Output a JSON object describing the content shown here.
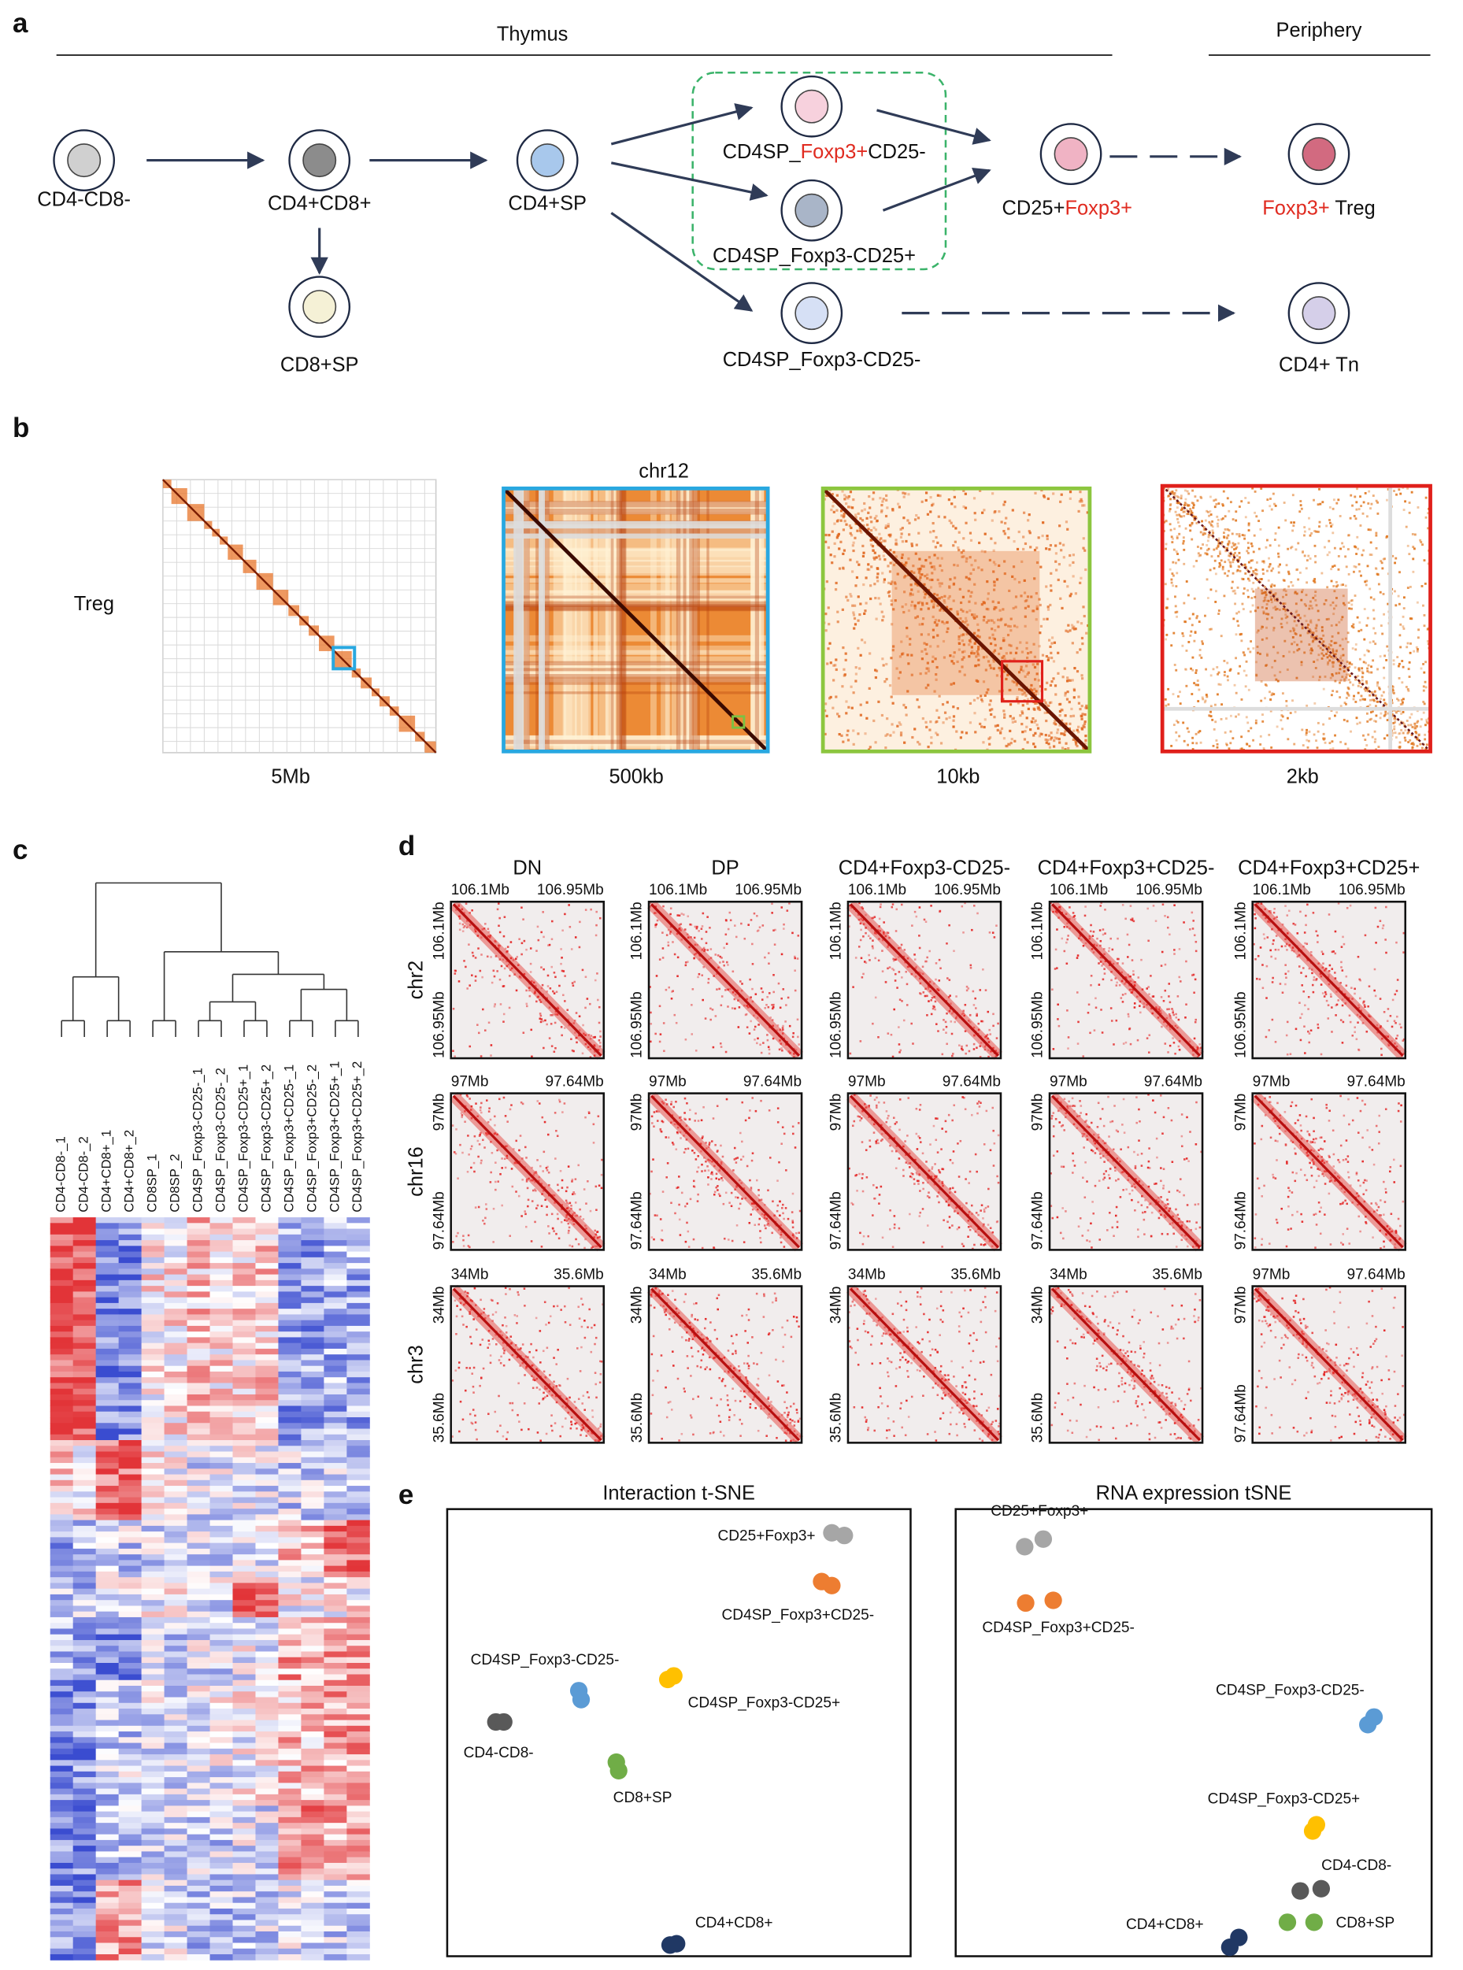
{
  "panels": {
    "a": {
      "letter": "a",
      "regions": [
        "Thymus",
        "Periphery"
      ],
      "cells": [
        {
          "fill": "#d0d0d0",
          "label": [
            {
              "text": "CD4-CD8-"
            }
          ]
        },
        {
          "fill": "#8c8c8c",
          "label": [
            {
              "text": "CD4+CD8+"
            }
          ]
        },
        {
          "fill": "#f5f1d6",
          "label": [
            {
              "text": "CD8+SP"
            }
          ]
        },
        {
          "fill": "#a8c8ec",
          "label": [
            {
              "text": "CD4+SP"
            }
          ]
        },
        {
          "fill": "#f7d1dd",
          "label": [
            {
              "text": "CD4SP_"
            },
            {
              "text": "Foxp3+",
              "color": "#e02b20"
            },
            {
              "text": "CD25-"
            }
          ]
        },
        {
          "fill": "#a9b5c8",
          "label": [
            {
              "text": "CD4SP_Foxp3-CD25+"
            }
          ]
        },
        {
          "fill": "#d6e0f5",
          "label": [
            {
              "text": "CD4SP_Foxp3-CD25-"
            }
          ]
        },
        {
          "fill": "#f0b3c4",
          "label": [
            {
              "text": "CD25+"
            },
            {
              "text": "Foxp3+",
              "color": "#e02b20"
            }
          ]
        },
        {
          "fill": "#d26a80",
          "label": [
            {
              "text": "Foxp3+",
              "color": "#e02b20"
            },
            {
              "text": " Treg"
            }
          ]
        },
        {
          "fill": "#d5cfe9",
          "label": [
            {
              "text": "CD4+ Tn"
            }
          ]
        }
      ]
    },
    "b": {
      "letter": "b",
      "sample": "Treg",
      "title": "chr12",
      "scales": [
        "5Mb",
        "500kb",
        "10kb",
        "2kb"
      ]
    },
    "c": {
      "letter": "c",
      "samples": [
        "CD4-CD8-_1",
        "CD4-CD8-_2",
        "CD4+CD8+_1",
        "CD4+CD8+_2",
        "CD8SP_1",
        "CD8SP_2",
        "CD4SP_Foxp3-CD25-_1",
        "CD4SP_Foxp3-CD25-_2",
        "CD4SP_Foxp3-CD25+_1",
        "CD4SP_Foxp3-CD25+_2",
        "CD4SP_Foxp3+CD25-_1",
        "CD4SP_Foxp3+CD25-_2",
        "CD4SP_Foxp3+CD25+_1",
        "CD4SP_Foxp3+CD25+_2"
      ]
    },
    "d": {
      "letter": "d",
      "columns": [
        "DN",
        "DP",
        "CD4+Foxp3-CD25-",
        "CD4+Foxp3+CD25-",
        "CD4+Foxp3+CD25+"
      ],
      "rows": [
        {
          "chr": "chr2",
          "cells": [
            {
              "start": "106.1Mb",
              "end": "106.95Mb"
            },
            {
              "start": "106.1Mb",
              "end": "106.95Mb"
            },
            {
              "start": "106.1Mb",
              "end": "106.95Mb"
            },
            {
              "start": "106.1Mb",
              "end": "106.95Mb"
            },
            {
              "start": "106.1Mb",
              "end": "106.95Mb"
            }
          ]
        },
        {
          "chr": "chr16",
          "cells": [
            {
              "start": "97Mb",
              "end": "97.64Mb"
            },
            {
              "start": "97Mb",
              "end": "97.64Mb"
            },
            {
              "start": "97Mb",
              "end": "97.64Mb"
            },
            {
              "start": "97Mb",
              "end": "97.64Mb"
            },
            {
              "start": "97Mb",
              "end": "97.64Mb"
            }
          ]
        },
        {
          "chr": "chr3",
          "cells": [
            {
              "start": "34Mb",
              "end": "35.6Mb"
            },
            {
              "start": "34Mb",
              "end": "35.6Mb"
            },
            {
              "start": "34Mb",
              "end": "35.6Mb"
            },
            {
              "start": "34Mb",
              "end": "35.6Mb"
            },
            {
              "start": "97Mb",
              "end": "97.64Mb"
            }
          ]
        }
      ]
    },
    "e": {
      "letter": "e",
      "charts": [
        {
          "type": "scatter",
          "title": "Interaction t-SNE",
          "xlim": [
            0,
            100
          ],
          "ylim": [
            0,
            100
          ],
          "series": [
            {
              "name": "CD25+Foxp3+",
              "color": "#a6a6a6",
              "x": [
                83.0,
                85.7
              ],
              "y": [
                94.7,
                94.1
              ]
            },
            {
              "name": "CD4SP_Foxp3+CD25-",
              "color": "#ed7d31",
              "x": [
                80.8,
                83.0
              ],
              "y": [
                83.8,
                82.9
              ]
            },
            {
              "name": "CD4SP_Foxp3-CD25-",
              "color": "#5b9bd5",
              "x": [
                28.4,
                28.9
              ],
              "y": [
                59.4,
                57.4
              ]
            },
            {
              "name": "CD4SP_Foxp3-CD25+",
              "color": "#ffc000",
              "x": [
                47.6,
                48.9
              ],
              "y": [
                61.9,
                62.7
              ]
            },
            {
              "name": "CD4-CD8-",
              "color": "#595959",
              "x": [
                10.5,
                12.2
              ],
              "y": [
                52.4,
                52.4
              ]
            },
            {
              "name": "CD8+SP",
              "color": "#70ad47",
              "x": [
                36.5,
                37.0
              ],
              "y": [
                43.4,
                41.5
              ]
            },
            {
              "name": "CD4+CD8+",
              "color": "#203864",
              "x": [
                48.1,
                49.5
              ],
              "y": [
                2.5,
                2.8
              ]
            }
          ]
        },
        {
          "type": "scatter",
          "title": "RNA expression tSNE",
          "xlim": [
            0,
            100
          ],
          "ylim": [
            0,
            100
          ],
          "series": [
            {
              "name": "CD25+Foxp3+",
              "color": "#a6a6a6",
              "x": [
                14.5,
                18.4
              ],
              "y": [
                91.6,
                93.3
              ]
            },
            {
              "name": "CD4SP_Foxp3+CD25-",
              "color": "#ed7d31",
              "x": [
                14.7,
                20.5
              ],
              "y": [
                79.0,
                79.6
              ]
            },
            {
              "name": "CD4SP_Foxp3-CD25-",
              "color": "#5b9bd5",
              "x": [
                86.6,
                87.9
              ],
              "y": [
                51.8,
                53.5
              ]
            },
            {
              "name": "CD4SP_Foxp3-CD25+",
              "color": "#ffc000",
              "x": [
                75.0,
                75.8
              ],
              "y": [
                28.0,
                29.4
              ]
            },
            {
              "name": "CD4-CD8-",
              "color": "#595959",
              "x": [
                72.4,
                76.8
              ],
              "y": [
                14.6,
                15.1
              ]
            },
            {
              "name": "CD8+SP",
              "color": "#70ad47",
              "x": [
                69.7,
                75.3
              ],
              "y": [
                7.6,
                7.6
              ]
            },
            {
              "name": "CD4+CD8+",
              "color": "#203864",
              "x": [
                57.6,
                59.5
              ],
              "y": [
                2.0,
                4.2
              ]
            }
          ]
        }
      ]
    }
  }
}
